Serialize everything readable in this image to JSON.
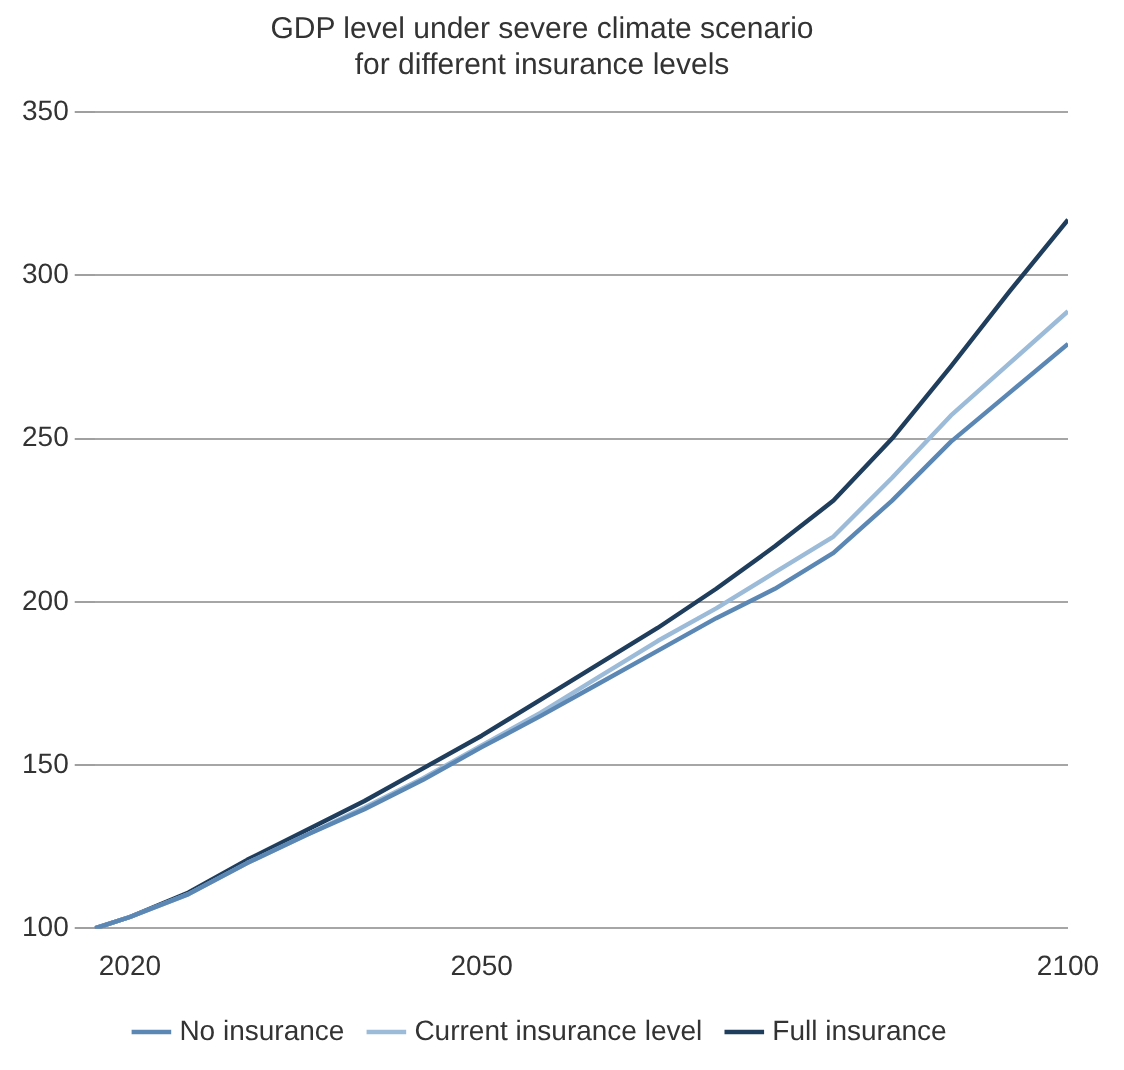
{
  "chart_data": {
    "type": "line",
    "title": "GDP level under severe climate scenario\nfor different insurance levels",
    "x": [
      2017,
      2020,
      2025,
      2030,
      2035,
      2040,
      2045,
      2050,
      2055,
      2060,
      2065,
      2070,
      2075,
      2080,
      2085,
      2090,
      2095,
      2100
    ],
    "series": [
      {
        "name": "No insurance",
        "color": "#5b87b5",
        "values": [
          100,
          103.5,
          110.5,
          120,
          128.5,
          136.5,
          145.5,
          155.5,
          165,
          175,
          185,
          195,
          204,
          215,
          231,
          249,
          264,
          279
        ]
      },
      {
        "name": "Current insurance level",
        "color": "#9bbbd9",
        "values": [
          100,
          103.5,
          110.5,
          120,
          128.5,
          137,
          146,
          156,
          166,
          177,
          188,
          198,
          209,
          220,
          238,
          257,
          273,
          289
        ]
      },
      {
        "name": "Full insurance",
        "color": "#1f3d5c",
        "values": [
          100,
          103.5,
          111,
          121,
          130,
          139,
          149,
          159,
          170,
          181,
          192,
          204,
          217,
          231,
          250,
          272,
          295,
          317
        ]
      }
    ],
    "xlim": [
      2017,
      2100
    ],
    "xticks": [
      2020,
      2050,
      2100
    ],
    "ylim": [
      100,
      350
    ],
    "yticks": [
      100,
      150,
      200,
      250,
      300,
      350
    ],
    "grid": "y",
    "legend": "bottom",
    "marker": "none",
    "line_style": "solid"
  }
}
